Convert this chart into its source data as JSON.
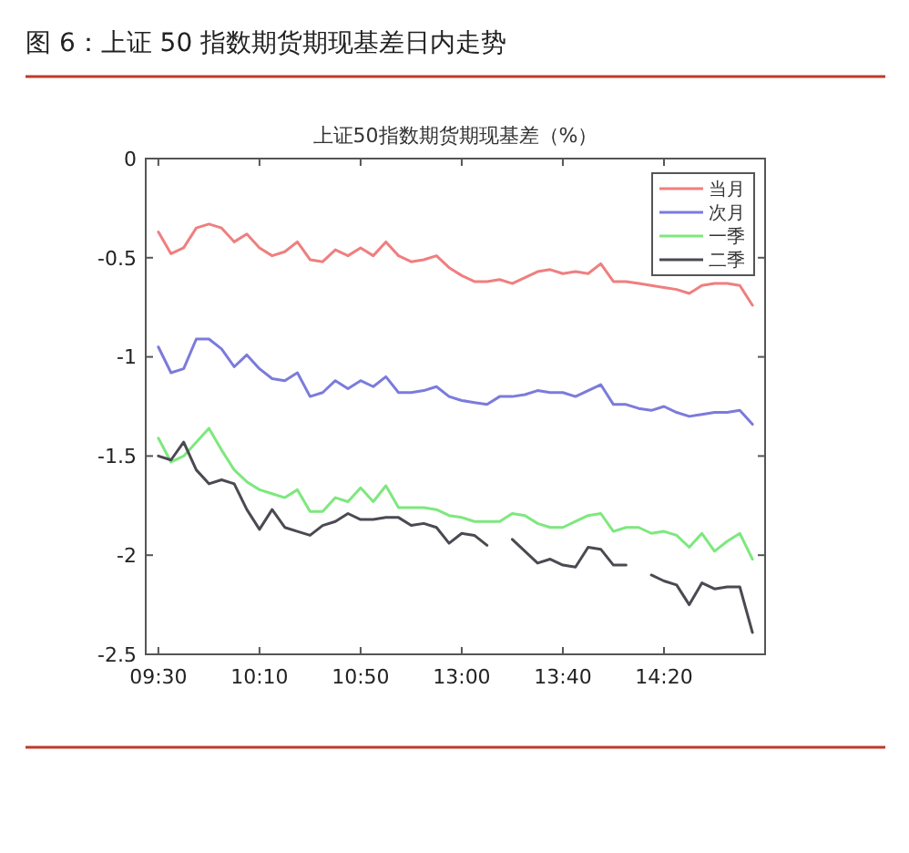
{
  "chart_data": {
    "type": "line",
    "title": "图 6：上证 50 指数期货期现基差日内走势",
    "subtitle": "上证50指数期货期现基差（%）",
    "categories": [
      "09:30",
      null,
      null,
      null,
      null,
      null,
      null,
      null,
      "10:10",
      null,
      null,
      null,
      null,
      null,
      null,
      null,
      "10:50",
      null,
      null,
      null,
      null,
      null,
      null,
      null,
      "13:00",
      null,
      null,
      null,
      null,
      null,
      null,
      null,
      "13:40",
      null,
      null,
      null,
      null,
      null,
      null,
      null,
      "14:20",
      null,
      null,
      null,
      null,
      null,
      null,
      null
    ],
    "ylim": [
      -2.5,
      0
    ],
    "yticks": [
      -2.5,
      -2,
      -1.5,
      -1,
      -0.5,
      0
    ],
    "grid": false,
    "legend": "top right",
    "marker": "none",
    "line_style": "solid",
    "series": [
      {
        "name": "当月",
        "color": "#ef7f7f",
        "values": [
          -0.37,
          -0.48,
          -0.45,
          -0.35,
          -0.33,
          -0.35,
          -0.42,
          -0.38,
          -0.45,
          -0.49,
          -0.47,
          -0.42,
          -0.51,
          -0.52,
          -0.46,
          -0.49,
          -0.45,
          -0.49,
          -0.42,
          -0.49,
          -0.52,
          -0.51,
          -0.49,
          -0.55,
          -0.59,
          -0.62,
          -0.62,
          -0.61,
          -0.63,
          -0.6,
          -0.57,
          -0.56,
          -0.58,
          -0.57,
          -0.58,
          -0.53,
          -0.62,
          -0.62,
          -0.63,
          -0.64,
          -0.65,
          -0.66,
          -0.68,
          -0.64,
          -0.63,
          -0.63,
          -0.64,
          -0.74
        ]
      },
      {
        "name": "次月",
        "color": "#7b7bdc",
        "values": [
          -0.95,
          -1.08,
          -1.06,
          -0.91,
          -0.91,
          -0.96,
          -1.05,
          -0.99,
          -1.06,
          -1.11,
          -1.12,
          -1.08,
          -1.2,
          -1.18,
          -1.12,
          -1.16,
          -1.12,
          -1.15,
          -1.1,
          -1.18,
          -1.18,
          -1.17,
          -1.15,
          -1.2,
          -1.22,
          -1.23,
          -1.24,
          -1.2,
          -1.2,
          -1.19,
          -1.17,
          -1.18,
          -1.18,
          -1.2,
          -1.17,
          -1.14,
          -1.24,
          -1.24,
          -1.26,
          -1.27,
          -1.25,
          -1.28,
          -1.3,
          -1.29,
          -1.28,
          -1.28,
          -1.27,
          -1.34
        ]
      },
      {
        "name": "一季",
        "color": "#7de87d",
        "values": [
          -1.41,
          -1.53,
          -1.5,
          -1.43,
          -1.36,
          -1.47,
          -1.57,
          -1.63,
          -1.67,
          -1.69,
          -1.71,
          -1.67,
          -1.78,
          -1.78,
          -1.71,
          -1.73,
          -1.66,
          -1.73,
          -1.65,
          -1.76,
          -1.76,
          -1.76,
          -1.77,
          -1.8,
          -1.81,
          -1.83,
          -1.83,
          -1.83,
          -1.79,
          -1.8,
          -1.84,
          -1.86,
          -1.86,
          -1.83,
          -1.8,
          -1.79,
          -1.88,
          -1.86,
          -1.86,
          -1.89,
          -1.88,
          -1.9,
          -1.96,
          -1.89,
          -1.98,
          -1.93,
          -1.89,
          -2.02
        ]
      },
      {
        "name": "二季",
        "color": "#4a4a52",
        "values": [
          -1.5,
          -1.52,
          -1.43,
          -1.57,
          -1.64,
          -1.62,
          -1.64,
          -1.77,
          -1.87,
          -1.77,
          -1.86,
          -1.88,
          -1.9,
          -1.85,
          -1.83,
          -1.79,
          -1.82,
          -1.82,
          -1.81,
          -1.81,
          -1.85,
          -1.84,
          -1.86,
          -1.94,
          -1.89,
          -1.9,
          -1.95,
          null,
          -1.92,
          -1.98,
          -2.04,
          -2.02,
          -2.05,
          -2.06,
          -1.96,
          -1.97,
          -2.05,
          -2.05,
          null,
          -2.1,
          -2.13,
          -2.15,
          -2.25,
          -2.14,
          -2.17,
          -2.16,
          -2.16,
          -2.39
        ]
      }
    ]
  }
}
